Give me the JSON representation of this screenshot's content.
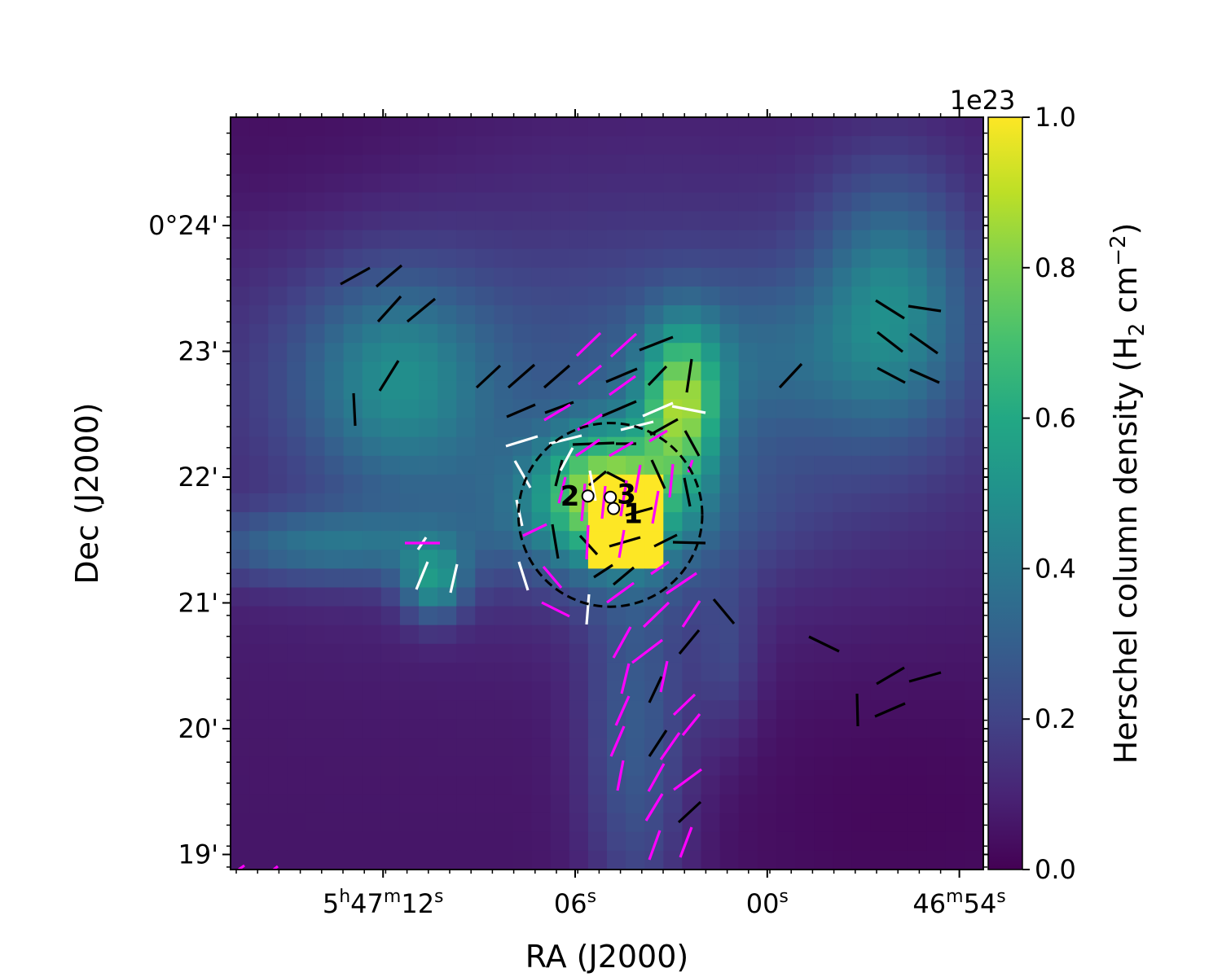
{
  "chart_data": {
    "type": "heatmap",
    "title": "",
    "xlabel": "RA (J2000)",
    "ylabel": "Dec (J2000)",
    "x_ticks": [
      {
        "label_main": "5",
        "sup1": "h",
        "mid": "47",
        "sup2": "m",
        "end": "12",
        "sup3": "s",
        "value": 12
      },
      {
        "label_main": "06",
        "sup1": "s",
        "value": 6
      },
      {
        "label_main": "00",
        "sup1": "s",
        "value": 0
      },
      {
        "label_main": "46",
        "sup1": "m",
        "mid": "54",
        "sup2": "s",
        "value": -6
      }
    ],
    "y_ticks": [
      "0°24'",
      "23'",
      "22'",
      "21'",
      "20'",
      "19'"
    ],
    "y_tick_values": [
      24,
      23,
      22,
      21,
      20,
      19
    ],
    "xlim_seconds": [
      17.0,
      -17.0
    ],
    "ylim_arcmin": [
      18.87,
      24.85
    ],
    "colorbar": {
      "label": "Herschel column density (H",
      "label_sub": "2",
      "label_unit": " cm",
      "label_sup": "−2",
      "label_end": ")",
      "offset_text": "1e23",
      "ticks": [
        "0.0",
        "0.2",
        "0.4",
        "0.6",
        "0.8",
        "1.0"
      ],
      "tick_values": [
        0.0,
        0.2,
        0.4,
        0.6,
        0.8,
        1.0
      ],
      "range": [
        0.0,
        1.0
      ],
      "colormap": "viridis"
    },
    "sources": [
      {
        "label": "1",
        "ra_s": 4.8,
        "dec_arcmin": 21.75
      },
      {
        "label": "2",
        "ra_s": 5.6,
        "dec_arcmin": 21.85
      },
      {
        "label": "3",
        "ra_s": 4.9,
        "dec_arcmin": 21.84
      }
    ],
    "beam_circles": [
      {
        "ra_s": 4.9,
        "dec_arcmin": 21.7,
        "radius_arcmin": 0.73,
        "style": "dashed"
      }
    ],
    "vector_colors": {
      "black": "#000000",
      "white": "#ffffff",
      "magenta": "#ff00ff"
    }
  }
}
